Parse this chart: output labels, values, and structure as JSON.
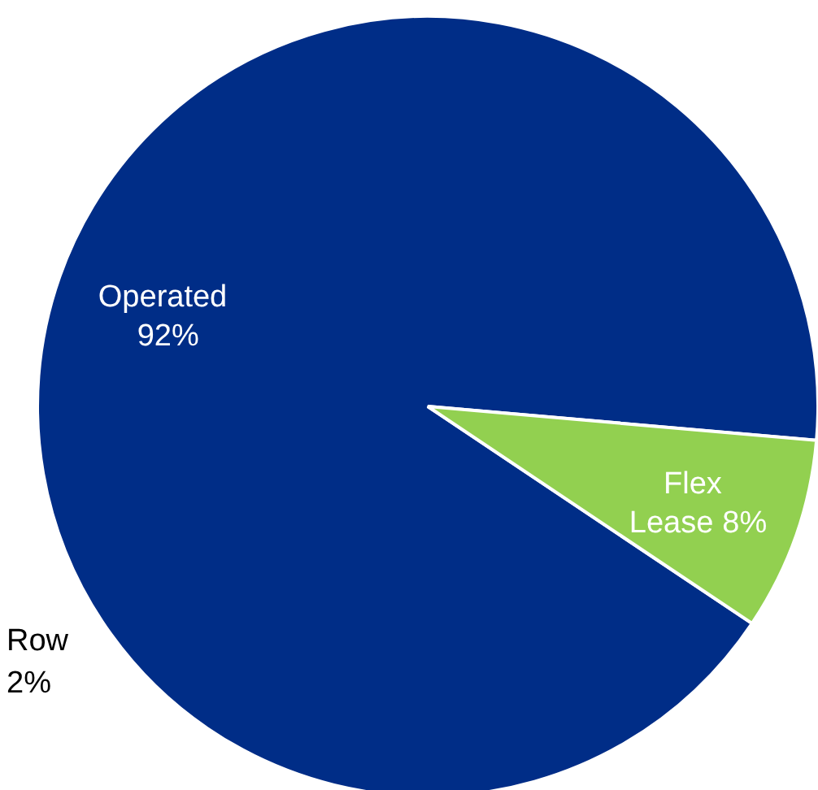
{
  "chart_data": {
    "type": "pie",
    "categories": [
      "Operated",
      "Flex Lease"
    ],
    "values": [
      92,
      8
    ],
    "colors": [
      "#002d87",
      "#92d050"
    ],
    "value_labels": [
      "92%",
      "8%"
    ],
    "annotations": [
      "Row 2%"
    ]
  }
}
